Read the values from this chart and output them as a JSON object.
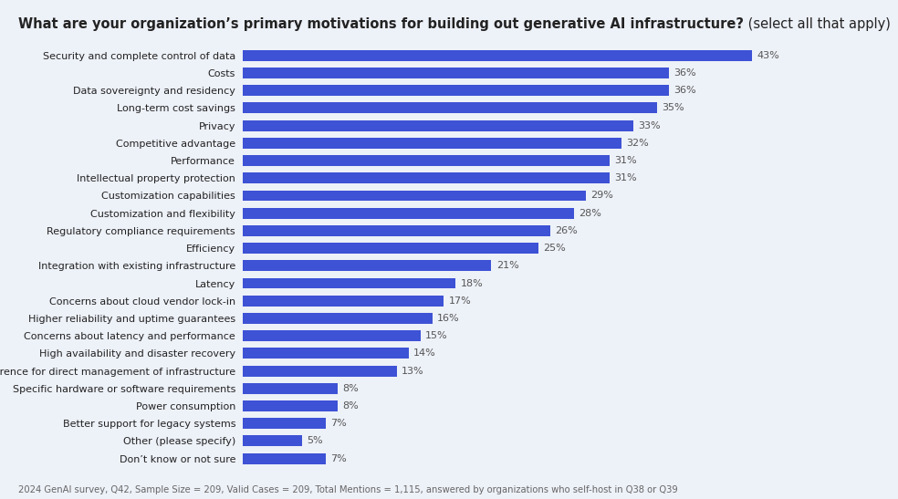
{
  "title_bold": "What are your organization’s primary motivations for building out generative AI infrastructure?",
  "title_normal": " (select all that apply)",
  "categories": [
    "Security and complete control of data",
    "Costs",
    "Data sovereignty and residency",
    "Long-term cost savings",
    "Privacy",
    "Competitive advantage",
    "Performance",
    "Intellectual property protection",
    "Customization capabilities",
    "Customization and flexibility",
    "Regulatory compliance requirements",
    "Efficiency",
    "Integration with existing infrastructure",
    "Latency",
    "Concerns about cloud vendor lock-in",
    "Higher reliability and uptime guarantees",
    "Concerns about latency and performance",
    "High availability and disaster recovery",
    "Preference for direct management of infrastructure",
    "Specific hardware or software requirements",
    "Power consumption",
    "Better support for legacy systems",
    "Other (please specify)",
    "Don’t know or not sure"
  ],
  "values": [
    43,
    36,
    36,
    35,
    33,
    32,
    31,
    31,
    29,
    28,
    26,
    25,
    21,
    18,
    17,
    16,
    15,
    14,
    13,
    8,
    8,
    7,
    5,
    7
  ],
  "bar_color": "#3d52d5",
  "background_color": "#edf1f8",
  "text_color": "#222222",
  "label_color": "#666666",
  "value_color": "#555555",
  "footnote": "2024 GenAI survey, Q42, Sample Size = 209, Valid Cases = 209, Total Mentions = 1,115, answered by organizations who self-host in Q38 or Q39",
  "xlim": [
    0,
    50
  ],
  "bar_height": 0.62,
  "title_fontsize": 10.5,
  "label_fontsize": 8.0,
  "value_fontsize": 8.0,
  "footnote_fontsize": 7.2
}
